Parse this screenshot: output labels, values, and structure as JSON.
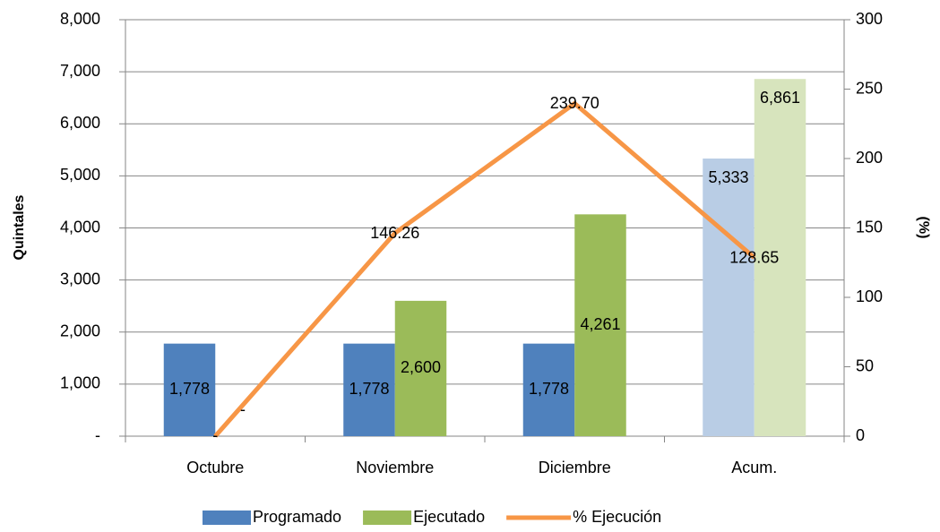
{
  "chart_data": {
    "type": "bar-line",
    "categories": [
      "Octubre",
      "Noviembre",
      "Diciembre",
      "Acum."
    ],
    "series": [
      {
        "name": "Programado",
        "type": "bar",
        "color": "#4f81bd",
        "point_colors": [
          "#4f81bd",
          "#4f81bd",
          "#4f81bd",
          "#b9cde5"
        ],
        "values": [
          1778,
          1778,
          1778,
          5333
        ],
        "value_labels": [
          "1,778",
          "1,778",
          "1,778",
          "5,333"
        ]
      },
      {
        "name": "Ejecutado",
        "type": "bar",
        "color": "#9bbb59",
        "point_colors": [
          "#9bbb59",
          "#9bbb59",
          "#9bbb59",
          "#d7e4bd"
        ],
        "values": [
          0,
          2600,
          4261,
          6861
        ],
        "value_labels": [
          "-",
          "2,600",
          "4,261",
          "6,861"
        ]
      },
      {
        "name": "% Ejecución",
        "type": "line",
        "axis": "y2",
        "color": "#f79646",
        "values": [
          0,
          146.26,
          239.7,
          128.65
        ],
        "value_labels": [
          "-",
          "146.26",
          "239.70",
          "128.65"
        ]
      }
    ],
    "ylabel": "Quintales",
    "y2label": "(%)",
    "ylim": [
      0,
      8000
    ],
    "yticks": [
      {
        "value": 0,
        "label": "-"
      },
      {
        "value": 1000,
        "label": "1,000"
      },
      {
        "value": 2000,
        "label": "2,000"
      },
      {
        "value": 3000,
        "label": "3,000"
      },
      {
        "value": 4000,
        "label": "4,000"
      },
      {
        "value": 5000,
        "label": "5,000"
      },
      {
        "value": 6000,
        "label": "6,000"
      },
      {
        "value": 7000,
        "label": "7,000"
      },
      {
        "value": 8000,
        "label": "8,000"
      }
    ],
    "y2lim": [
      0,
      300
    ],
    "y2ticks": [
      0,
      50,
      100,
      150,
      200,
      250,
      300
    ],
    "grid": true,
    "legend": "bottom"
  }
}
